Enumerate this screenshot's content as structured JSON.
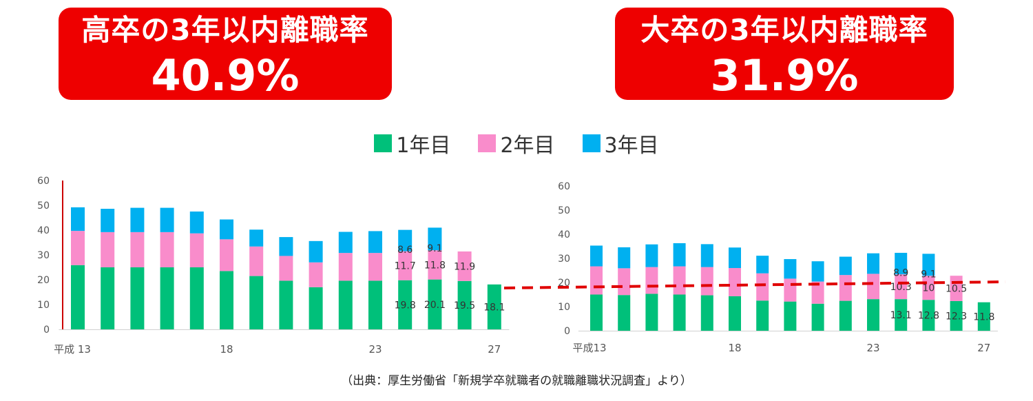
{
  "headlines": [
    {
      "title": "高卒の3年以内離職率",
      "value": "40.9%"
    },
    {
      "title": "大卒の3年以内離職率",
      "value": "31.9%"
    }
  ],
  "legend": [
    {
      "label": "1年目",
      "color": "#00c07a"
    },
    {
      "label": "2年目",
      "color": "#f98ccb"
    },
    {
      "label": "3年目",
      "color": "#00b0f0"
    }
  ],
  "source": "（出典：厚生労働省「新規学卒就職者の就職離職状況調査」より）",
  "colors": {
    "year1": "#00c07a",
    "year2": "#f98ccb",
    "year3": "#00b0f0",
    "reference_line": "#e00000",
    "axis_left": "#cc0000"
  },
  "chart_data": [
    {
      "type": "bar",
      "stacked": true,
      "categories": [
        "平成13",
        "14",
        "15",
        "16",
        "17",
        "18",
        "19",
        "20",
        "21",
        "22",
        "23",
        "24",
        "25",
        "26",
        "27"
      ],
      "x_tick_labels": [
        "平成 13",
        "18",
        "23",
        "27"
      ],
      "ylim": [
        0,
        60
      ],
      "yticks": [
        0,
        10,
        20,
        30,
        40,
        50,
        60
      ],
      "series": [
        {
          "name": "1年目",
          "values": [
            25.9,
            25.0,
            25.0,
            25.0,
            25.0,
            23.5,
            21.5,
            19.6,
            17.0,
            19.6,
            19.6,
            19.8,
            20.1,
            19.5,
            18.1
          ]
        },
        {
          "name": "2年目",
          "values": [
            13.8,
            14.2,
            14.2,
            14.2,
            13.7,
            12.8,
            11.9,
            10.0,
            10.0,
            11.2,
            11.2,
            11.7,
            11.8,
            11.9,
            null
          ]
        },
        {
          "name": "3年目",
          "values": [
            9.5,
            9.4,
            9.8,
            9.8,
            8.8,
            8.0,
            6.8,
            7.6,
            8.6,
            8.5,
            8.8,
            8.6,
            9.1,
            null,
            null
          ]
        }
      ],
      "data_labels": [
        {
          "category": "24",
          "series": "1年目",
          "text": "19.8"
        },
        {
          "category": "25",
          "series": "1年目",
          "text": "20.1"
        },
        {
          "category": "26",
          "series": "1年目",
          "text": "19.5"
        },
        {
          "category": "27",
          "series": "1年目",
          "text": "18.1"
        },
        {
          "category": "24",
          "series": "2年目",
          "text": "11.7"
        },
        {
          "category": "25",
          "series": "2年目",
          "text": "11.8"
        },
        {
          "category": "26",
          "series": "2年目",
          "text": "11.9"
        },
        {
          "category": "24",
          "series": "3年目",
          "text": "8.6"
        },
        {
          "category": "25",
          "series": "3年目",
          "text": "9.1"
        }
      ],
      "grid": false
    },
    {
      "type": "bar",
      "stacked": true,
      "categories": [
        "平成13",
        "14",
        "15",
        "16",
        "17",
        "18",
        "19",
        "20",
        "21",
        "22",
        "23",
        "24",
        "25",
        "26",
        "27"
      ],
      "x_tick_labels": [
        "平成13",
        "18",
        "23",
        "27"
      ],
      "ylim": [
        0,
        60
      ],
      "yticks": [
        0,
        10,
        20,
        30,
        40,
        50,
        60
      ],
      "series": [
        {
          "name": "1年目",
          "values": [
            15.0,
            14.8,
            15.3,
            15.0,
            14.7,
            14.3,
            12.5,
            12.1,
            11.2,
            12.4,
            13.1,
            13.1,
            12.8,
            12.3,
            11.8
          ]
        },
        {
          "name": "2年目",
          "values": [
            11.7,
            11.1,
            11.1,
            11.7,
            11.7,
            11.7,
            11.3,
            9.5,
            9.2,
            10.7,
            10.5,
            10.3,
            10.0,
            10.5,
            null
          ]
        },
        {
          "name": "3年目",
          "values": [
            8.6,
            8.7,
            9.4,
            9.6,
            9.5,
            8.5,
            7.3,
            8.1,
            8.4,
            7.6,
            8.5,
            8.9,
            9.1,
            null,
            null
          ]
        }
      ],
      "data_labels": [
        {
          "category": "24",
          "series": "1年目",
          "text": "13.1"
        },
        {
          "category": "25",
          "series": "1年目",
          "text": "12.8"
        },
        {
          "category": "26",
          "series": "1年目",
          "text": "12.3"
        },
        {
          "category": "27",
          "series": "1年目",
          "text": "11.8"
        },
        {
          "category": "24",
          "series": "2年目",
          "text": "10.3"
        },
        {
          "category": "25",
          "series": "2年目",
          "text": "10"
        },
        {
          "category": "26",
          "series": "2年目",
          "text": "10.5"
        },
        {
          "category": "24",
          "series": "3年目",
          "text": "8.9"
        },
        {
          "category": "25",
          "series": "3年目",
          "text": "9.1"
        }
      ],
      "grid": false
    }
  ]
}
